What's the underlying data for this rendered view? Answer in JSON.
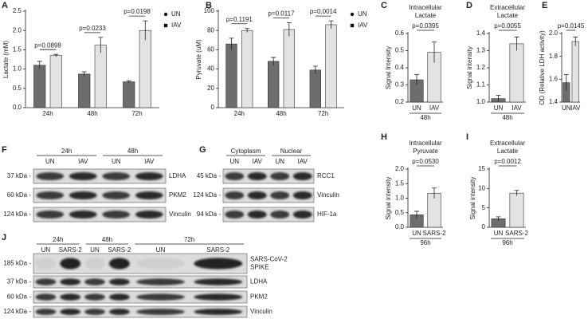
{
  "chart_data": [
    {
      "panel": "A",
      "type": "bar",
      "ylabel": "Lactate (mM)",
      "categories": [
        "24h",
        "48h",
        "72h"
      ],
      "series": [
        {
          "name": "UN",
          "color": "#6d6d6d",
          "values": [
            1.1,
            0.87,
            0.67
          ],
          "errors": [
            0.1,
            0.06,
            0.03
          ]
        },
        {
          "name": "IAV",
          "color": "#e3e3e3",
          "values": [
            1.35,
            1.62,
            2.0
          ],
          "errors": [
            0.03,
            0.2,
            0.25
          ]
        }
      ],
      "p_values": [
        "p=0.0898",
        "p=0.0233",
        "p=0.0198"
      ],
      "ylim": [
        0,
        2.5
      ],
      "yticks": [
        {
          "value": 0,
          "label": "0.0"
        },
        0.5,
        {
          "value": 1,
          "label": "1.0"
        },
        1.5,
        {
          "value": 2,
          "label": "2.0"
        },
        2.5
      ],
      "legend": "top-right"
    },
    {
      "panel": "B",
      "type": "bar",
      "ylabel": "Pyruvate (uM)",
      "categories": [
        "24h",
        "48h",
        "72h"
      ],
      "series": [
        {
          "name": "UN",
          "color": "#6d6d6d",
          "values": [
            66,
            48,
            39
          ],
          "errors": [
            6,
            4,
            4
          ]
        },
        {
          "name": "IAV",
          "color": "#e3e3e3",
          "values": [
            80,
            81,
            86
          ],
          "errors": [
            2,
            7,
            4
          ]
        }
      ],
      "p_values": [
        "p=0.1191",
        "p=0.0117",
        "p=0.0014"
      ],
      "ylim": [
        0,
        100
      ],
      "yticks": [
        0,
        20,
        40,
        60,
        80,
        100
      ],
      "legend": "top-right"
    },
    {
      "panel": "C",
      "type": "bar",
      "title": [
        "Intracellular",
        "Lactate"
      ],
      "ylabel": "Signal Intensity",
      "categories": [
        "UN",
        "IAV"
      ],
      "values": [
        0.33,
        0.49
      ],
      "errors": [
        0.03,
        0.06
      ],
      "colors": [
        "#6d6d6d",
        "#e3e3e3"
      ],
      "xlabel": "48h",
      "p_values": [
        "p=0.0395"
      ],
      "ylim": [
        0.2,
        0.6
      ],
      "yticks": [
        0.2,
        0.3,
        0.4,
        0.5,
        0.6
      ]
    },
    {
      "panel": "D",
      "type": "bar",
      "title": [
        "Extracellular",
        "Lactate"
      ],
      "ylabel": "Signal intensity",
      "categories": [
        "UN",
        "IAV"
      ],
      "values": [
        1.02,
        1.34
      ],
      "errors": [
        0.02,
        0.04
      ],
      "colors": [
        "#6d6d6d",
        "#e3e3e3"
      ],
      "xlabel": "48h",
      "p_values": [
        "p=0.0055"
      ],
      "ylim": [
        1,
        1.4
      ],
      "yticks": [
        {
          "value": 1,
          "label": "1.0"
        },
        1.1,
        1.2,
        1.3,
        1.4
      ]
    },
    {
      "panel": "E",
      "type": "bar",
      "ylabel": "OD (Relative LDH activity)",
      "categories": [
        "UN",
        "IAV"
      ],
      "values": [
        1.57,
        1.93
      ],
      "errors": [
        0.07,
        0.04
      ],
      "colors": [
        "#6d6d6d",
        "#e3e3e3"
      ],
      "p_values": [
        "p=0.0145"
      ],
      "ylim": [
        1.4,
        2
      ],
      "yticks": [
        1.4,
        1.6,
        1.8,
        {
          "value": 2,
          "label": "2.0"
        }
      ]
    },
    {
      "panel": "H",
      "type": "bar",
      "title": [
        "Intracellular",
        "Pyruvate"
      ],
      "ylabel": "Signal intensity",
      "categories": [
        "UN",
        "SARS-2"
      ],
      "values": [
        0.43,
        1.17
      ],
      "errors": [
        0.12,
        0.18
      ],
      "colors": [
        "#6d6d6d",
        "#e3e3e3"
      ],
      "xlabel": "96h",
      "p_values": [
        "p=0.0530"
      ],
      "ylim": [
        0,
        2
      ],
      "yticks": [
        {
          "value": 0,
          "label": "0.0"
        },
        0.5,
        {
          "value": 1,
          "label": "1.0"
        },
        1.5,
        {
          "value": 2,
          "label": "2.0"
        }
      ]
    },
    {
      "panel": "I",
      "type": "bar",
      "title": [
        "Extracellular",
        "Lactate"
      ],
      "ylabel": "Signal intensity",
      "categories": [
        "UN",
        "SARS-2"
      ],
      "values": [
        2.2,
        8.8
      ],
      "errors": [
        0.5,
        0.7
      ],
      "colors": [
        "#6d6d6d",
        "#e3e3e3"
      ],
      "xlabel": "96h",
      "p_values": [
        "p=0.0012"
      ],
      "ylim": [
        0,
        15
      ],
      "yticks": [
        0,
        5,
        10,
        15
      ]
    }
  ],
  "blots": [
    {
      "panel": "F",
      "groups": [
        {
          "label": "24h",
          "lanes": [
            "UN",
            "IAV"
          ]
        },
        {
          "label": "48h",
          "lanes": [
            "UN",
            "IAV"
          ]
        }
      ],
      "rows": [
        {
          "mw": "37 kDa -",
          "label": "LDHA"
        },
        {
          "mw": "60 kDa -",
          "label": "PKM2"
        },
        {
          "mw": "124 kDa -",
          "label": "Vinculin"
        }
      ]
    },
    {
      "panel": "G",
      "groups": [
        {
          "label": "Cytoplasm",
          "lanes": [
            "UN",
            "IAV"
          ]
        },
        {
          "label": "Nuclear",
          "lanes": [
            "UN",
            "IAV"
          ]
        }
      ],
      "rows": [
        {
          "mw": "45 kDa -",
          "label": "RCC1"
        },
        {
          "mw": "124 kDa -",
          "label": "Vinculin"
        },
        {
          "mw": "94 kDa -",
          "label": "HIF-1a"
        }
      ]
    },
    {
      "panel": "J",
      "groups": [
        {
          "label": "24h",
          "lanes": [
            "UN",
            "SARS-2"
          ]
        },
        {
          "label": "48h",
          "lanes": [
            "UN",
            "SARS-2"
          ]
        },
        {
          "label": "72h",
          "lanes": [
            "UN",
            "SARS-2"
          ]
        }
      ],
      "rows": [
        {
          "mw": "185 kDa -",
          "label": [
            "SARS-CoV-2",
            "SPIKE"
          ]
        },
        {
          "mw": "37 kDa -",
          "label": "LDHA"
        },
        {
          "mw": "60 kDa -",
          "label": "PKM2"
        },
        {
          "mw": "124 kDa -",
          "label": "Vinculin"
        }
      ]
    }
  ]
}
